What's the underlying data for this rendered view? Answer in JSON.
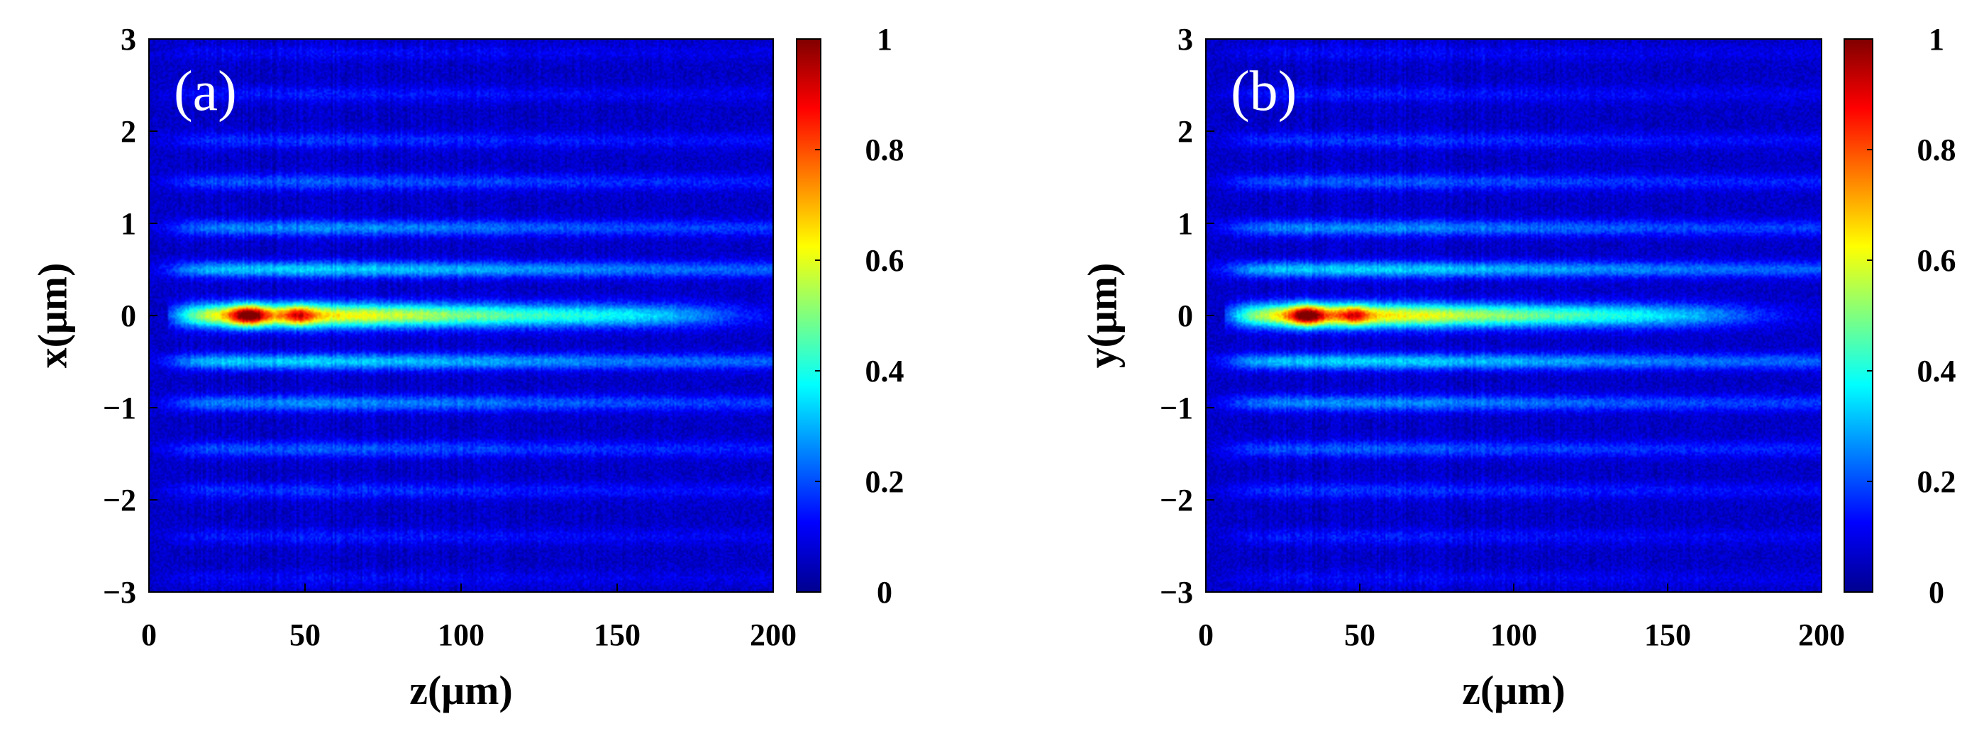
{
  "chart_data": [
    {
      "type": "heatmap",
      "panel_label": "(a)",
      "xlabel": "z(μm)",
      "ylabel": "x(μm)",
      "xlim": [
        0,
        200
      ],
      "ylim": [
        -3,
        3
      ],
      "xticks": [
        "0",
        "50",
        "100",
        "150",
        "200"
      ],
      "yticks": [
        "3",
        "2",
        "1",
        "0",
        "−1",
        "−2",
        "−3"
      ],
      "colorbar": {
        "range": [
          0,
          1
        ],
        "ticks": [
          "1",
          "0.8",
          "0.6",
          "0.4",
          "0.2",
          "0"
        ],
        "colormap": "jet"
      },
      "features": {
        "main_lobe_center": 0,
        "peak_positions_z": [
          32,
          48
        ],
        "peak_intensity": 1,
        "lobe_extent_z": [
          10,
          180
        ],
        "side_lobe_rows": [
          0.5,
          0.95,
          1.45,
          1.9,
          2.4,
          2.85
        ]
      }
    },
    {
      "type": "heatmap",
      "panel_label": "(b)",
      "xlabel": "z(μm)",
      "ylabel": "y(μm)",
      "xlim": [
        0,
        200
      ],
      "ylim": [
        -3,
        3
      ],
      "xticks": [
        "0",
        "50",
        "100",
        "150",
        "200"
      ],
      "yticks": [
        "3",
        "2",
        "1",
        "0",
        "−1",
        "−2",
        "−3"
      ],
      "colorbar": {
        "range": [
          0,
          1
        ],
        "ticks": [
          "1",
          "0.8",
          "0.6",
          "0.4",
          "0.2",
          "0"
        ],
        "colormap": "jet"
      },
      "features": {
        "main_lobe_center": 0,
        "peak_positions_z": [
          33,
          48
        ],
        "peak_intensity": 1,
        "lobe_extent_z": [
          10,
          170
        ],
        "side_lobe_rows": [
          0.5,
          0.95,
          1.45,
          1.9,
          2.4,
          2.85
        ]
      }
    }
  ]
}
